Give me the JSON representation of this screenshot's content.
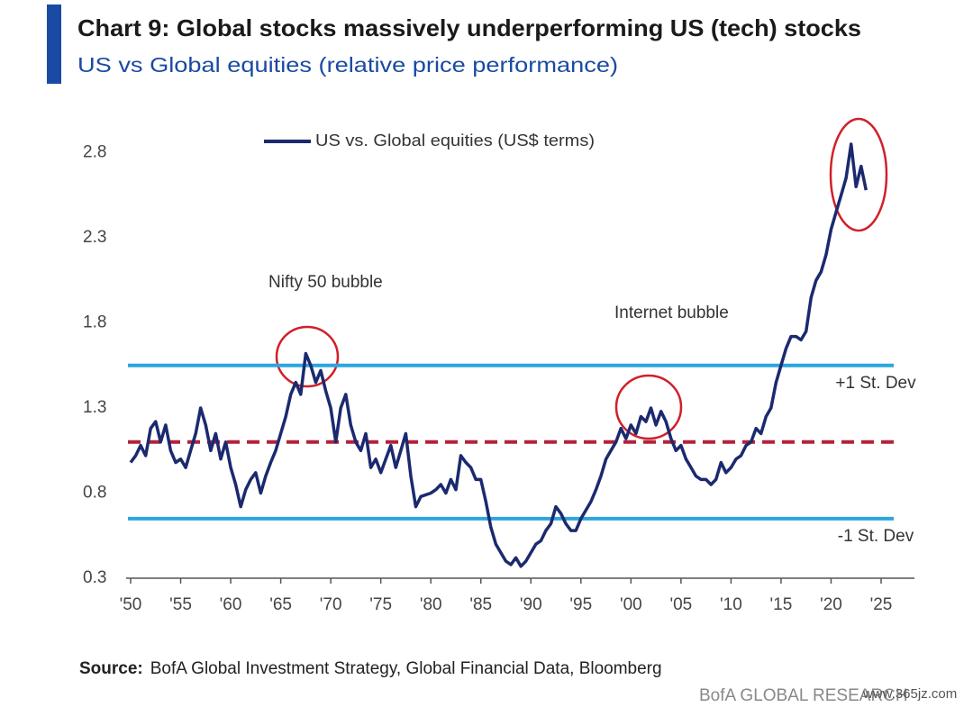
{
  "chart_data": {
    "type": "line",
    "title": "Chart 9: Global stocks massively underperforming US (tech) stocks",
    "subtitle": "US vs Global equities (relative price performance)",
    "source_label": "Source:",
    "source": "BofA Global Investment Strategy, Global Financial Data, Bloomberg",
    "brand": "BofA GLOBAL RESEARCH",
    "watermark": "www.365jz.com",
    "legend": "top",
    "annotations": [
      "Nifty 50 bubble",
      "Internet bubble"
    ],
    "reference_lines": [
      {
        "label": "+1 St. Dev",
        "value": 1.55,
        "color": "#2ba6dd"
      },
      {
        "value": 1.1,
        "color": "#b3213b",
        "style": "dashed"
      },
      {
        "label": "-1 St. Dev",
        "value": 0.65,
        "color": "#2ba6dd"
      }
    ],
    "xlim": [
      1950,
      2028
    ],
    "xticks": [
      {
        "value": 1950,
        "label": "'50"
      },
      {
        "value": 1955,
        "label": "'55"
      },
      {
        "value": 1960,
        "label": "'60"
      },
      {
        "value": 1965,
        "label": "'65"
      },
      {
        "value": 1970,
        "label": "'70"
      },
      {
        "value": 1975,
        "label": "'75"
      },
      {
        "value": 1980,
        "label": "'80"
      },
      {
        "value": 1985,
        "label": "'85"
      },
      {
        "value": 1990,
        "label": "'90"
      },
      {
        "value": 1995,
        "label": "'95"
      },
      {
        "value": 2000,
        "label": "'00"
      },
      {
        "value": 2005,
        "label": "'05"
      },
      {
        "value": 2010,
        "label": "'10"
      },
      {
        "value": 2015,
        "label": "'15"
      },
      {
        "value": 2020,
        "label": "'20"
      },
      {
        "value": 2025,
        "label": "'25"
      }
    ],
    "ylim": [
      0.3,
      2.95
    ],
    "yticks": [
      0.3,
      0.8,
      1.3,
      1.8,
      2.3,
      2.8
    ],
    "x": [
      1950,
      1950.5,
      1951,
      1951.5,
      1952,
      1952.5,
      1953,
      1953.5,
      1954,
      1954.5,
      1955,
      1955.5,
      1956,
      1956.5,
      1957,
      1957.5,
      1958,
      1958.5,
      1959,
      1959.5,
      1960,
      1960.5,
      1961,
      1961.5,
      1962,
      1962.5,
      1963,
      1963.5,
      1964,
      1964.5,
      1965,
      1965.5,
      1966,
      1966.5,
      1967,
      1967.5,
      1968,
      1968.5,
      1969,
      1969.5,
      1970,
      1970.5,
      1971,
      1971.5,
      1972,
      1972.5,
      1973,
      1973.5,
      1974,
      1974.5,
      1975,
      1975.5,
      1976,
      1976.5,
      1977,
      1977.5,
      1978,
      1978.5,
      1979,
      1980,
      1980.5,
      1981,
      1981.5,
      1982,
      1982.5,
      1983,
      1983.5,
      1984,
      1984.5,
      1985,
      1985.5,
      1986,
      1986.5,
      1987,
      1987.5,
      1988,
      1988.5,
      1989,
      1989.5,
      1990,
      1990.5,
      1991,
      1991.5,
      1992,
      1992.5,
      1993,
      1993.5,
      1994,
      1994.5,
      1995,
      1995.5,
      1996,
      1996.5,
      1997,
      1997.5,
      1998,
      1998.5,
      1999,
      1999.5,
      2000,
      2000.5,
      2001,
      2001.5,
      2002,
      2002.5,
      2003,
      2003.5,
      2004,
      2004.5,
      2005,
      2005.5,
      2006,
      2006.5,
      2007,
      2007.5,
      2008,
      2008.5,
      2009,
      2009.5,
      2010,
      2010.5,
      2011,
      2011.5,
      2012,
      2012.5,
      2013,
      2013.5,
      2014,
      2014.5,
      2015,
      2015.5,
      2016,
      2016.5,
      2017,
      2017.5,
      2018,
      2018.5,
      2019,
      2019.5,
      2020,
      2020.5,
      2021,
      2021.5,
      2022,
      2022.5,
      2023,
      2023.5
    ],
    "series": [
      {
        "name": "US vs. Global equities (US$ terms)",
        "color": "#1b2a6f",
        "values": [
          0.98,
          1.02,
          1.08,
          1.02,
          1.18,
          1.22,
          1.1,
          1.2,
          1.05,
          0.98,
          1.0,
          0.95,
          1.05,
          1.15,
          1.3,
          1.2,
          1.05,
          1.15,
          1.0,
          1.1,
          0.95,
          0.85,
          0.72,
          0.82,
          0.88,
          0.92,
          0.8,
          0.9,
          0.98,
          1.05,
          1.15,
          1.25,
          1.38,
          1.45,
          1.38,
          1.62,
          1.55,
          1.45,
          1.52,
          1.4,
          1.3,
          1.1,
          1.3,
          1.38,
          1.2,
          1.1,
          1.05,
          1.15,
          0.95,
          1.0,
          0.92,
          1.0,
          1.08,
          0.95,
          1.05,
          1.15,
          0.9,
          0.72,
          0.78,
          0.8,
          0.82,
          0.85,
          0.8,
          0.88,
          0.82,
          1.02,
          0.98,
          0.95,
          0.88,
          0.88,
          0.75,
          0.6,
          0.5,
          0.45,
          0.4,
          0.38,
          0.42,
          0.37,
          0.4,
          0.45,
          0.5,
          0.52,
          0.58,
          0.62,
          0.72,
          0.68,
          0.62,
          0.58,
          0.58,
          0.65,
          0.7,
          0.75,
          0.82,
          0.9,
          1.0,
          1.05,
          1.1,
          1.18,
          1.12,
          1.2,
          1.15,
          1.25,
          1.22,
          1.3,
          1.2,
          1.28,
          1.22,
          1.12,
          1.05,
          1.08,
          1.0,
          0.95,
          0.9,
          0.88,
          0.88,
          0.85,
          0.88,
          0.98,
          0.92,
          0.95,
          1.0,
          1.02,
          1.08,
          1.1,
          1.18,
          1.15,
          1.25,
          1.3,
          1.45,
          1.55,
          1.65,
          1.72,
          1.72,
          1.7,
          1.75,
          1.95,
          2.05,
          2.1,
          2.2,
          2.35,
          2.45,
          2.55,
          2.65,
          2.85,
          2.6,
          2.72,
          2.58
        ]
      }
    ]
  }
}
